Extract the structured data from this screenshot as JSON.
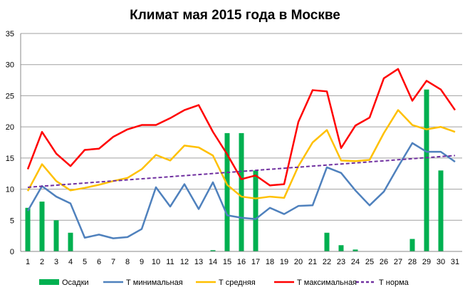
{
  "chart_data": {
    "type": "bar+line",
    "title": "Климат мая 2015 года в Москве",
    "categories": [
      1,
      2,
      3,
      4,
      5,
      6,
      7,
      8,
      9,
      10,
      11,
      12,
      13,
      14,
      15,
      16,
      17,
      18,
      19,
      20,
      21,
      22,
      23,
      24,
      25,
      26,
      27,
      28,
      29,
      30,
      31
    ],
    "ylim": [
      0,
      35
    ],
    "yticks": [
      0,
      5,
      10,
      15,
      20,
      25,
      30,
      35
    ],
    "grid": true,
    "legend_placement": "bottom",
    "series": [
      {
        "name": "Осадки",
        "type": "bar",
        "color": "#00b050",
        "values": [
          7,
          8,
          5,
          3,
          0,
          0,
          0,
          0,
          0,
          0,
          0,
          0,
          0,
          0.2,
          19,
          19,
          13,
          0,
          0,
          0,
          0,
          3,
          1,
          0.3,
          0,
          0,
          0,
          2,
          26,
          13,
          0
        ]
      },
      {
        "name": "Т минимальная",
        "type": "line",
        "color": "#4f81bd",
        "values": [
          6.5,
          10.5,
          8.8,
          7.7,
          2.2,
          2.7,
          2.1,
          2.3,
          3.6,
          10.3,
          7.2,
          10.8,
          6.8,
          11.1,
          5.8,
          5.4,
          5.2,
          7.0,
          6.0,
          7.3,
          7.4,
          13.5,
          12.6,
          9.8,
          7.4,
          9.6,
          13.6,
          17.4,
          16.0,
          16.0,
          14.4
        ]
      },
      {
        "name": "Т средняя",
        "type": "line",
        "color": "#ffc000",
        "values": [
          9.7,
          14.0,
          11.3,
          9.8,
          10.2,
          10.7,
          11.3,
          11.8,
          13.2,
          15.5,
          14.6,
          17.0,
          16.7,
          15.4,
          10.7,
          8.8,
          8.5,
          8.8,
          8.6,
          13.7,
          17.5,
          19.5,
          14.6,
          14.5,
          14.7,
          19.0,
          22.7,
          20.3,
          19.6,
          20.0,
          19.2
        ]
      },
      {
        "name": "Т максимальная",
        "type": "line",
        "color": "#ff0000",
        "values": [
          13.2,
          19.2,
          15.7,
          13.7,
          16.3,
          16.5,
          18.4,
          19.6,
          20.3,
          20.3,
          21.4,
          22.7,
          23.5,
          19.2,
          15.6,
          11.6,
          12.2,
          10.6,
          10.8,
          20.8,
          25.9,
          25.7,
          16.6,
          20.2,
          21.5,
          27.8,
          29.3,
          24.2,
          27.4,
          26.0,
          22.7
        ]
      },
      {
        "name": "Т норма",
        "type": "line",
        "dashed": true,
        "color": "#7030a0",
        "values": [
          10.3,
          10.47,
          10.64,
          10.81,
          10.98,
          11.15,
          11.32,
          11.49,
          11.66,
          11.83,
          12.0,
          12.17,
          12.34,
          12.51,
          12.68,
          12.85,
          13.02,
          13.19,
          13.36,
          13.53,
          13.7,
          13.87,
          14.04,
          14.21,
          14.38,
          14.55,
          14.72,
          14.89,
          15.06,
          15.23,
          15.4
        ]
      }
    ]
  }
}
